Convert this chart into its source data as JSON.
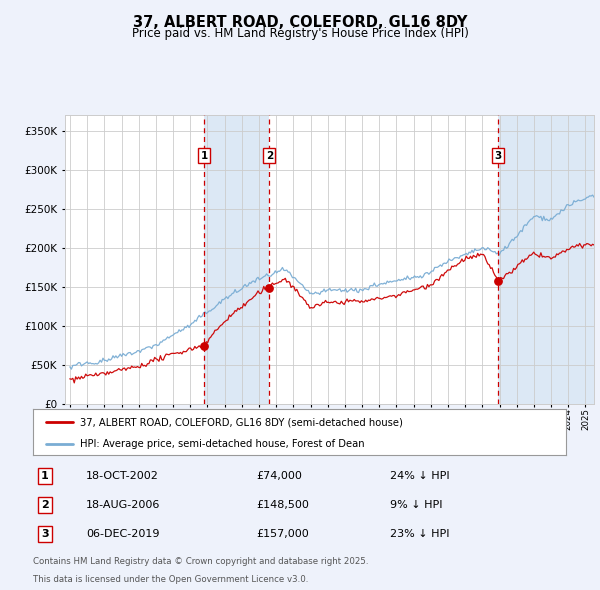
{
  "title": "37, ALBERT ROAD, COLEFORD, GL16 8DY",
  "subtitle": "Price paid vs. HM Land Registry's House Price Index (HPI)",
  "background_color": "#eef2fb",
  "plot_bg_color": "#ffffff",
  "ylim": [
    0,
    370000
  ],
  "yticks": [
    0,
    50000,
    100000,
    150000,
    200000,
    250000,
    300000,
    350000
  ],
  "ytick_labels": [
    "£0",
    "£50K",
    "£100K",
    "£150K",
    "£200K",
    "£250K",
    "£300K",
    "£350K"
  ],
  "xlim_start": 1994.7,
  "xlim_end": 2025.5,
  "purchases": [
    {
      "num": 1,
      "date_label": "18-OCT-2002",
      "price": 74000,
      "pct": "24%",
      "x_year": 2002.8
    },
    {
      "num": 2,
      "date_label": "18-AUG-2006",
      "price": 148500,
      "pct": "9%",
      "x_year": 2006.6
    },
    {
      "num": 3,
      "date_label": "06-DEC-2019",
      "price": 157000,
      "pct": "23%",
      "x_year": 2019.92
    }
  ],
  "legend_red_label": "37, ALBERT ROAD, COLEFORD, GL16 8DY (semi-detached house)",
  "legend_blue_label": "HPI: Average price, semi-detached house, Forest of Dean",
  "footer1": "Contains HM Land Registry data © Crown copyright and database right 2025.",
  "footer2": "This data is licensed under the Open Government Licence v3.0.",
  "red_color": "#cc0000",
  "blue_color": "#7aadd4",
  "shade_color": "#dce8f5",
  "grid_color": "#cccccc",
  "vline_color": "#cc0000",
  "title_fontsize": 10.5,
  "subtitle_fontsize": 8.5
}
